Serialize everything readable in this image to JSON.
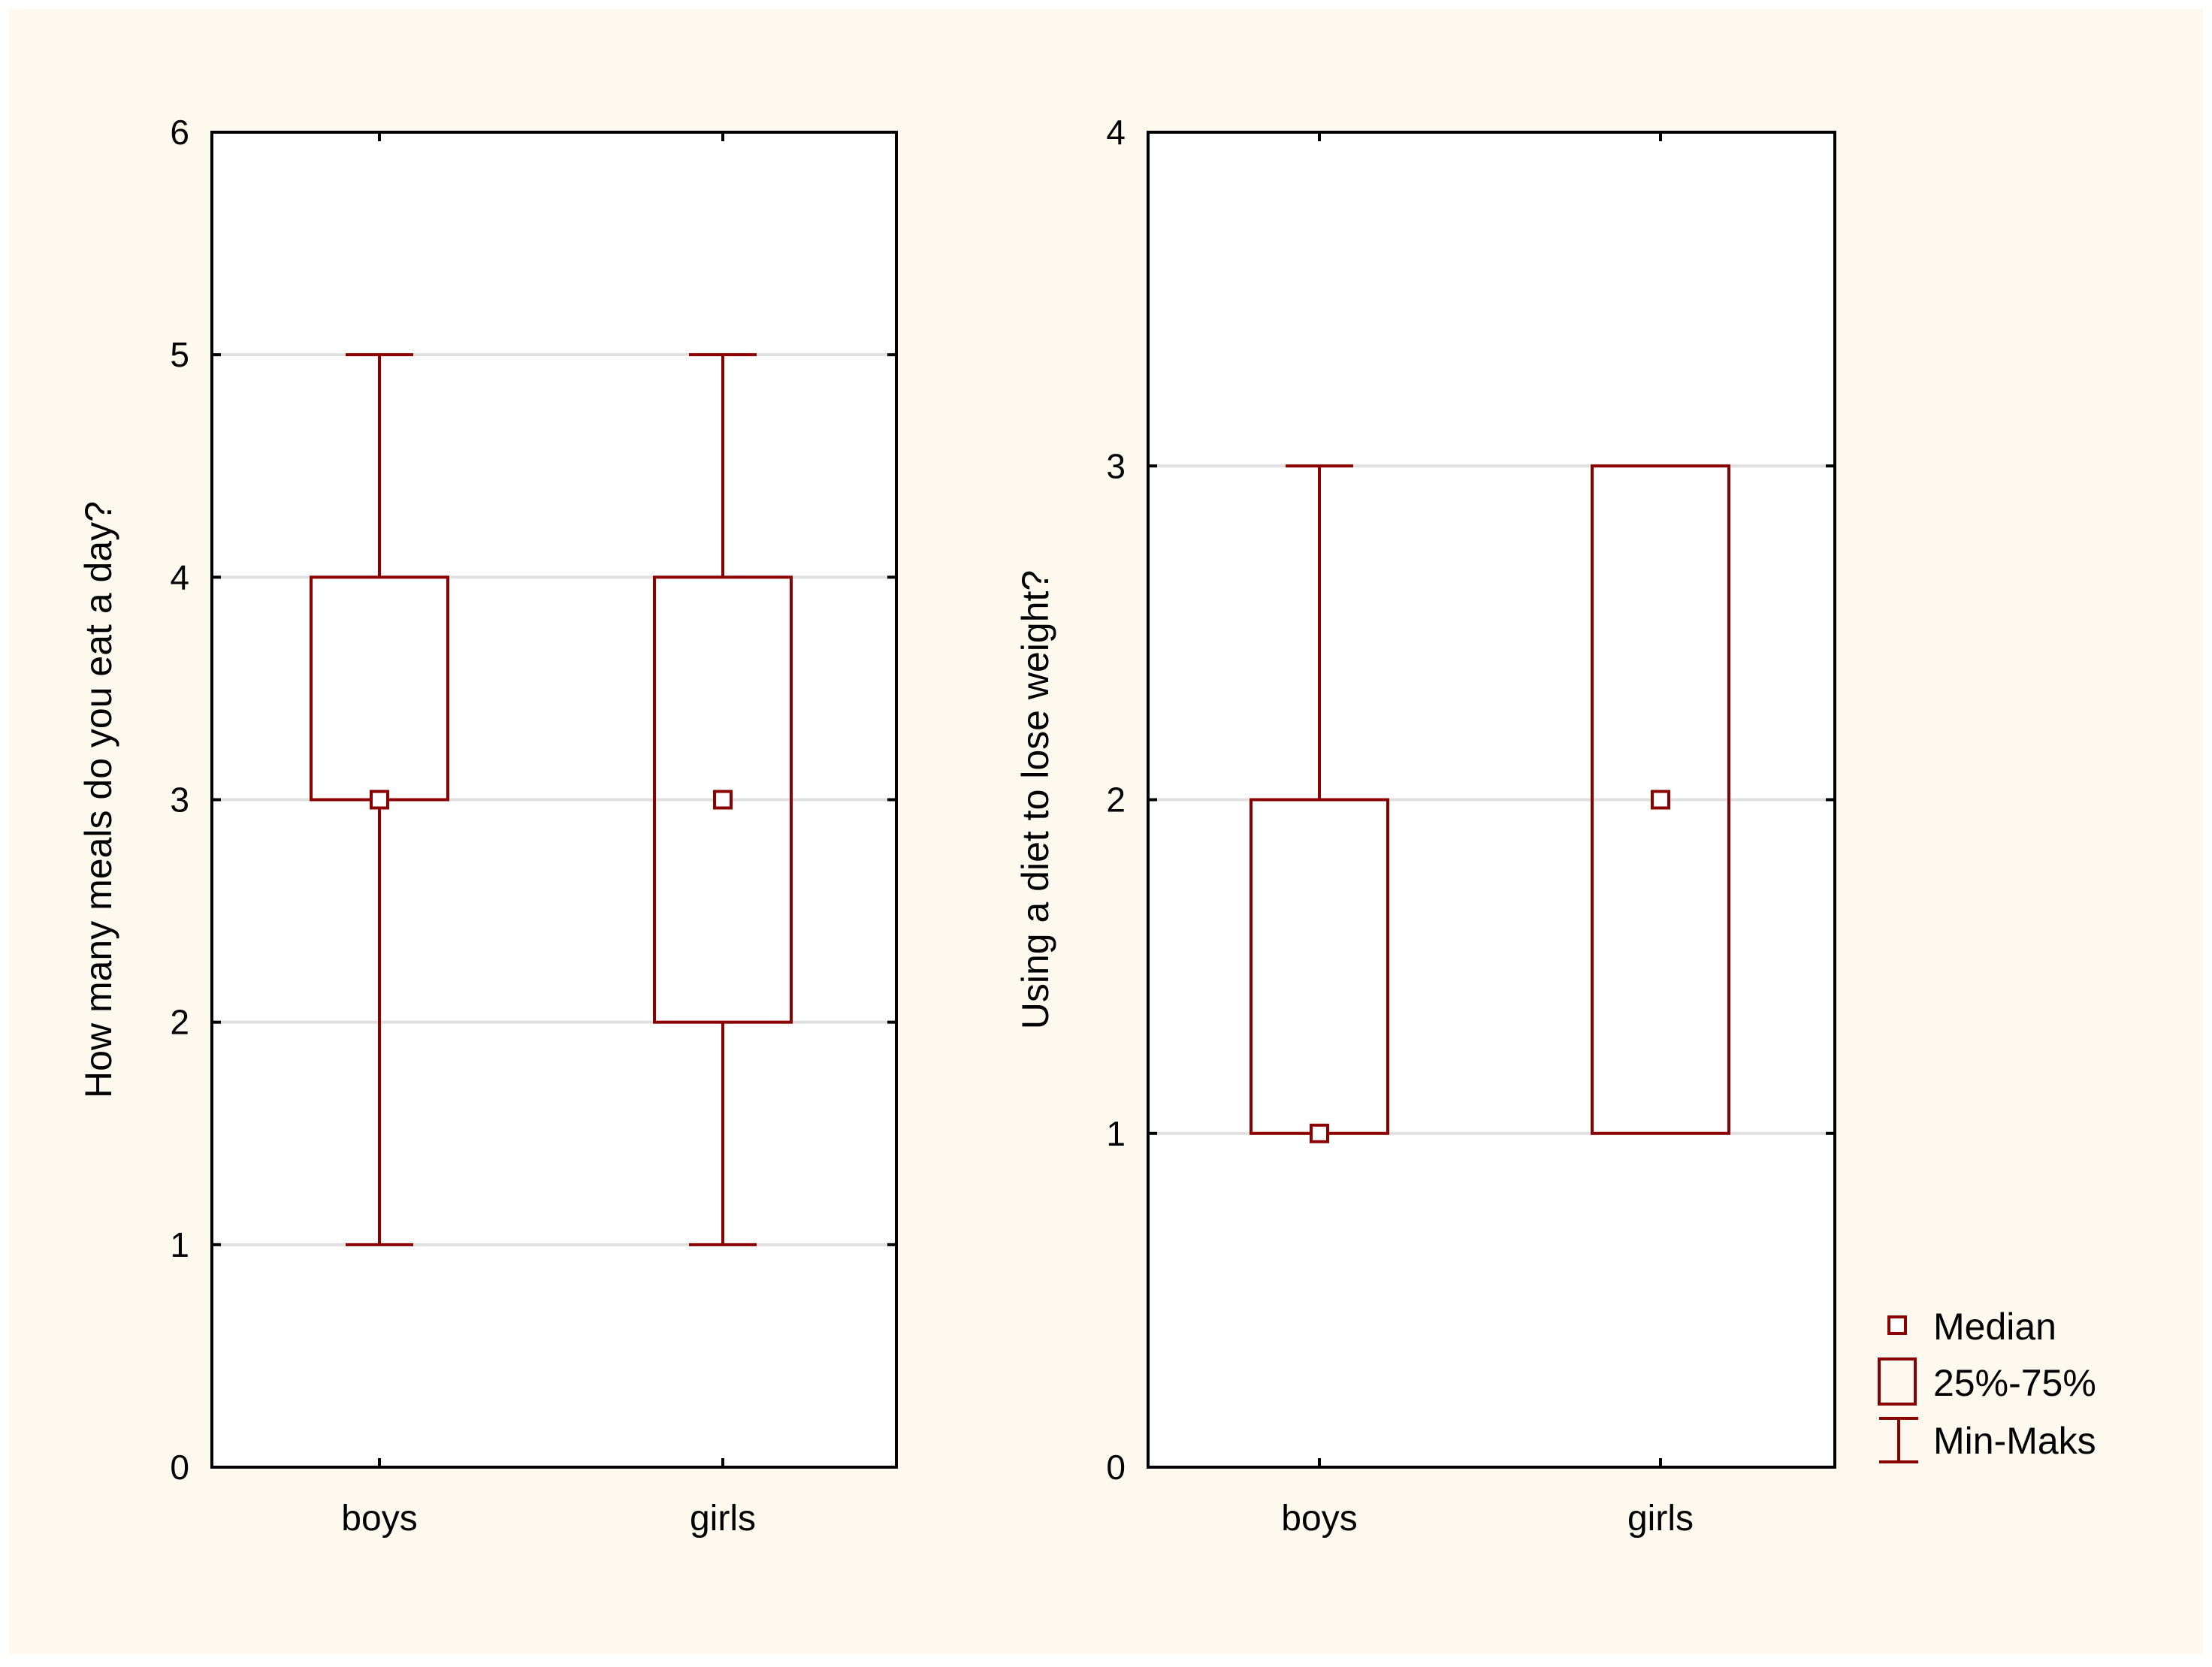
{
  "colors": {
    "outer_background": "#ffffff",
    "figure_background": "#fdf9ef",
    "plot_background": "#ffffff",
    "box_color": "#8b0000",
    "grid_color": "#e0e0e0",
    "axis_color": "#000000"
  },
  "chart_data": [
    {
      "type": "boxplot",
      "title": "",
      "xlabel": "",
      "ylabel": "How many meals do you eat a day?",
      "ylim": [
        0,
        6
      ],
      "yticks": [
        0,
        1,
        2,
        3,
        4,
        5,
        6
      ],
      "grid": true,
      "categories": [
        "boys",
        "girls"
      ],
      "series": [
        {
          "name": "boys",
          "median": 3,
          "q1": 3,
          "q3": 4,
          "min": 1,
          "max": 5
        },
        {
          "name": "girls",
          "median": 3,
          "q1": 2,
          "q3": 4,
          "min": 1,
          "max": 5
        }
      ]
    },
    {
      "type": "boxplot",
      "title": "",
      "xlabel": "",
      "ylabel": "Using a diet to lose weight?",
      "ylim": [
        0,
        4
      ],
      "yticks": [
        0,
        1,
        2,
        3,
        4
      ],
      "grid": true,
      "categories": [
        "boys",
        "girls"
      ],
      "series": [
        {
          "name": "boys",
          "median": 1,
          "q1": 1,
          "q3": 2,
          "min": 1,
          "max": 3
        },
        {
          "name": "girls",
          "median": 2,
          "q1": 1,
          "q3": 3,
          "min": 1,
          "max": 3
        }
      ]
    }
  ],
  "legend": {
    "placement": "bottom-right",
    "items": [
      {
        "symbol": "median",
        "label": "Median"
      },
      {
        "symbol": "box",
        "label": "25%-75%"
      },
      {
        "symbol": "whisker",
        "label": "Min-Maks"
      }
    ]
  }
}
